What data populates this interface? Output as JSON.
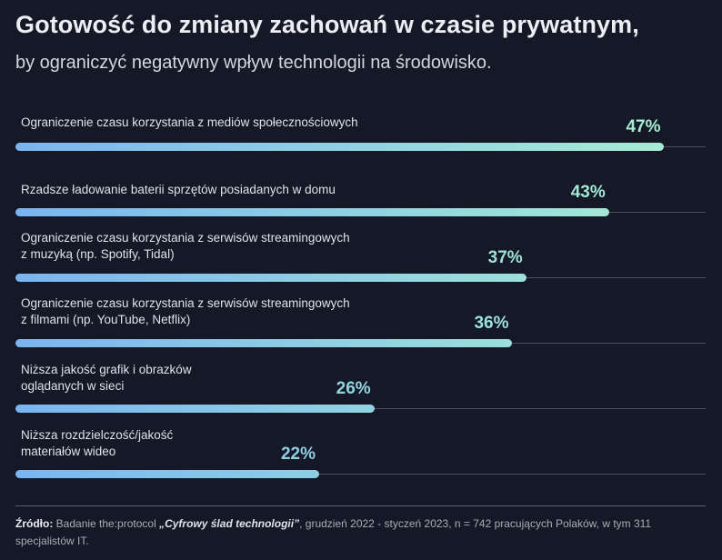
{
  "title": "Gotowość do zmiany zachowań w czasie prywatnym,",
  "subtitle": "by ograniczyć negatywny wpływ technologii na środowisko.",
  "colors": {
    "background": "#141827",
    "bar_start": "#7ab5f0",
    "bar_end": "#a9eed3",
    "track": "#4a5060"
  },
  "chart_data": {
    "type": "bar",
    "orientation": "horizontal",
    "title": "Gotowość do zmiany zachowań w czasie prywatnym,",
    "subtitle": "by ograniczyć negatywny wpływ technologii na środowisko.",
    "categories": [
      "Ograniczenie czasu korzystania z mediów społecznościowych",
      "Rzadsze ładowanie baterii sprzętów posiadanych w domu",
      "Ograniczenie czasu korzystania z serwisów streamingowych\nz muzyką (np. Spotify, Tidal)",
      "Ograniczenie czasu korzystania z serwisów streamingowych\nz filmami (np. YouTube, Netflix)",
      "Niższa jakość grafik i obrazków\noglądanych w sieci",
      "Niższa rozdzielczość/jakość\nmateriałów wideo"
    ],
    "values": [
      47,
      43,
      37,
      36,
      26,
      22
    ],
    "value_labels": [
      "47%",
      "43%",
      "37%",
      "36%",
      "26%",
      "22%"
    ],
    "xlim": [
      0,
      50
    ],
    "unit": "%",
    "grid": false,
    "legend": "none"
  },
  "footer": {
    "source_label": "Źródło:",
    "text_before": " Badanie the:protocol ",
    "study_name": "„Cyfrowy ślad technologii”",
    "text_after": ", grudzień 2022 - styczeń 2023, n = 742 pracujących Polaków, w tym 311 specjalistów IT."
  }
}
